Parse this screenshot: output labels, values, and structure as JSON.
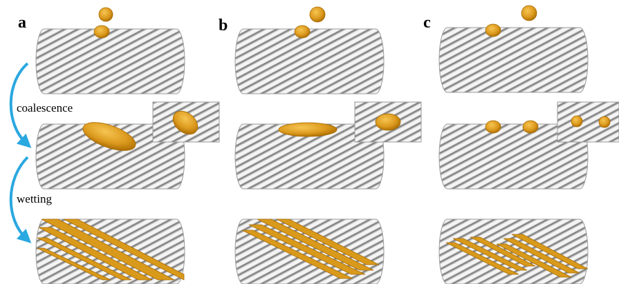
{
  "panels": [
    {
      "label": "a"
    },
    {
      "label": "b"
    },
    {
      "label": "c"
    }
  ],
  "steps": [
    "coalescence",
    "wetting"
  ]
}
